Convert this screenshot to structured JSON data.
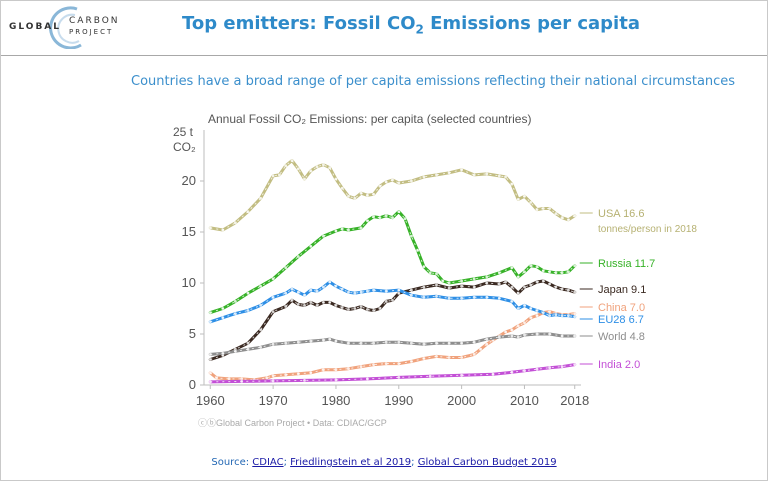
{
  "header": {
    "logo": {
      "left": "GLOBAL",
      "right_top": "CARBON",
      "right_bottom": "PROJECT"
    },
    "title_main": "Top emitters: Fossil CO",
    "title_sub": "2",
    "title_end": " Emissions per capita"
  },
  "subtitle": "Countries have a broad range of per capita emissions reflecting their national circumstances",
  "chart_data": {
    "type": "line",
    "title": "Annual Fossil CO₂ Emissions: per capita (selected countries)",
    "ylabel_top": "25 t",
    "ylabel_unit": "CO₂",
    "xlim": [
      1959,
      2019
    ],
    "ylim": [
      0,
      25
    ],
    "xticks": [
      "1960",
      "1970",
      "1980",
      "1990",
      "2000",
      "2010",
      "2018"
    ],
    "yticks": [
      "0",
      "5",
      "10",
      "15",
      "20"
    ],
    "grid": false,
    "credit": "ⓒⓑGlobal Carbon Project  •  Data: CDIAC/GCP",
    "series": [
      {
        "name": "USA",
        "value_label": "16.6",
        "extra": "tonnes/person in 2018",
        "color": "#c2bd82",
        "points": [
          [
            1960,
            15.4
          ],
          [
            1962,
            15.2
          ],
          [
            1964,
            15.9
          ],
          [
            1966,
            17.0
          ],
          [
            1968,
            18.3
          ],
          [
            1970,
            20.5
          ],
          [
            1971,
            20.6
          ],
          [
            1972,
            21.5
          ],
          [
            1973,
            22.0
          ],
          [
            1974,
            21.2
          ],
          [
            1975,
            20.2
          ],
          [
            1976,
            21.0
          ],
          [
            1977,
            21.4
          ],
          [
            1978,
            21.6
          ],
          [
            1979,
            21.3
          ],
          [
            1980,
            20.2
          ],
          [
            1981,
            19.3
          ],
          [
            1982,
            18.5
          ],
          [
            1983,
            18.3
          ],
          [
            1984,
            18.8
          ],
          [
            1985,
            18.6
          ],
          [
            1986,
            18.7
          ],
          [
            1987,
            19.5
          ],
          [
            1988,
            19.9
          ],
          [
            1989,
            20.1
          ],
          [
            1990,
            19.8
          ],
          [
            1992,
            20.0
          ],
          [
            1994,
            20.4
          ],
          [
            1996,
            20.6
          ],
          [
            1998,
            20.8
          ],
          [
            2000,
            21.1
          ],
          [
            2002,
            20.6
          ],
          [
            2004,
            20.7
          ],
          [
            2006,
            20.5
          ],
          [
            2007,
            20.4
          ],
          [
            2008,
            19.7
          ],
          [
            2009,
            18.2
          ],
          [
            2010,
            18.5
          ],
          [
            2011,
            17.9
          ],
          [
            2012,
            17.2
          ],
          [
            2013,
            17.3
          ],
          [
            2014,
            17.3
          ],
          [
            2015,
            16.8
          ],
          [
            2016,
            16.4
          ],
          [
            2017,
            16.2
          ],
          [
            2018,
            16.6
          ]
        ]
      },
      {
        "name": "Russia",
        "value_label": "11.7",
        "extra": "",
        "color": "#37b228",
        "points": [
          [
            1960,
            7.1
          ],
          [
            1962,
            7.5
          ],
          [
            1964,
            8.2
          ],
          [
            1966,
            9.0
          ],
          [
            1968,
            9.7
          ],
          [
            1970,
            10.4
          ],
          [
            1972,
            11.5
          ],
          [
            1974,
            12.6
          ],
          [
            1976,
            13.6
          ],
          [
            1978,
            14.6
          ],
          [
            1980,
            15.1
          ],
          [
            1981,
            15.3
          ],
          [
            1982,
            15.2
          ],
          [
            1984,
            15.4
          ],
          [
            1985,
            16.1
          ],
          [
            1986,
            16.5
          ],
          [
            1987,
            16.4
          ],
          [
            1988,
            16.6
          ],
          [
            1989,
            16.4
          ],
          [
            1990,
            17.0
          ],
          [
            1991,
            16.3
          ],
          [
            1992,
            14.6
          ],
          [
            1993,
            13.2
          ],
          [
            1994,
            11.6
          ],
          [
            1995,
            11.0
          ],
          [
            1996,
            10.9
          ],
          [
            1997,
            10.2
          ],
          [
            1998,
            10.0
          ],
          [
            2000,
            10.2
          ],
          [
            2002,
            10.4
          ],
          [
            2004,
            10.6
          ],
          [
            2006,
            11.0
          ],
          [
            2008,
            11.5
          ],
          [
            2009,
            10.6
          ],
          [
            2010,
            11.1
          ],
          [
            2011,
            11.7
          ],
          [
            2012,
            11.6
          ],
          [
            2013,
            11.2
          ],
          [
            2014,
            11.1
          ],
          [
            2015,
            11.0
          ],
          [
            2016,
            11.0
          ],
          [
            2017,
            11.1
          ],
          [
            2018,
            11.7
          ]
        ]
      },
      {
        "name": "Japan",
        "value_label": "9.1",
        "extra": "",
        "color": "#3b2a22",
        "points": [
          [
            1960,
            2.5
          ],
          [
            1962,
            2.9
          ],
          [
            1964,
            3.5
          ],
          [
            1966,
            4.1
          ],
          [
            1968,
            5.4
          ],
          [
            1970,
            7.2
          ],
          [
            1972,
            7.7
          ],
          [
            1973,
            8.3
          ],
          [
            1974,
            7.9
          ],
          [
            1975,
            7.8
          ],
          [
            1976,
            8.1
          ],
          [
            1977,
            7.8
          ],
          [
            1978,
            8.1
          ],
          [
            1979,
            8.1
          ],
          [
            1980,
            7.8
          ],
          [
            1981,
            7.6
          ],
          [
            1982,
            7.4
          ],
          [
            1983,
            7.5
          ],
          [
            1984,
            7.7
          ],
          [
            1985,
            7.4
          ],
          [
            1986,
            7.3
          ],
          [
            1987,
            7.5
          ],
          [
            1988,
            8.2
          ],
          [
            1989,
            8.3
          ],
          [
            1990,
            9.0
          ],
          [
            1992,
            9.3
          ],
          [
            1994,
            9.6
          ],
          [
            1996,
            9.8
          ],
          [
            1998,
            9.5
          ],
          [
            2000,
            9.7
          ],
          [
            2002,
            9.6
          ],
          [
            2004,
            10.0
          ],
          [
            2006,
            9.9
          ],
          [
            2007,
            10.1
          ],
          [
            2008,
            9.6
          ],
          [
            2009,
            9.0
          ],
          [
            2010,
            9.6
          ],
          [
            2011,
            9.8
          ],
          [
            2012,
            10.1
          ],
          [
            2013,
            10.2
          ],
          [
            2014,
            9.9
          ],
          [
            2015,
            9.6
          ],
          [
            2016,
            9.4
          ],
          [
            2017,
            9.3
          ],
          [
            2018,
            9.1
          ]
        ]
      },
      {
        "name": "China",
        "value_label": "7.0",
        "extra": "",
        "color": "#f0a27c",
        "points": [
          [
            1960,
            1.2
          ],
          [
            1961,
            0.7
          ],
          [
            1963,
            0.6
          ],
          [
            1965,
            0.6
          ],
          [
            1967,
            0.5
          ],
          [
            1969,
            0.7
          ],
          [
            1970,
            0.9
          ],
          [
            1972,
            1.0
          ],
          [
            1974,
            1.1
          ],
          [
            1976,
            1.2
          ],
          [
            1978,
            1.5
          ],
          [
            1980,
            1.5
          ],
          [
            1982,
            1.6
          ],
          [
            1984,
            1.8
          ],
          [
            1986,
            2.0
          ],
          [
            1988,
            2.1
          ],
          [
            1990,
            2.1
          ],
          [
            1992,
            2.3
          ],
          [
            1994,
            2.6
          ],
          [
            1996,
            2.8
          ],
          [
            1998,
            2.7
          ],
          [
            2000,
            2.7
          ],
          [
            2002,
            3.0
          ],
          [
            2003,
            3.5
          ],
          [
            2004,
            4.0
          ],
          [
            2005,
            4.4
          ],
          [
            2006,
            4.8
          ],
          [
            2007,
            5.2
          ],
          [
            2008,
            5.4
          ],
          [
            2009,
            5.8
          ],
          [
            2010,
            6.1
          ],
          [
            2011,
            6.6
          ],
          [
            2012,
            6.8
          ],
          [
            2013,
            7.1
          ],
          [
            2014,
            7.2
          ],
          [
            2015,
            7.0
          ],
          [
            2016,
            6.9
          ],
          [
            2017,
            6.9
          ],
          [
            2018,
            7.0
          ]
        ]
      },
      {
        "name": "EU28",
        "value_label": "6.7",
        "extra": "",
        "color": "#2e8fe6",
        "points": [
          [
            1960,
            6.2
          ],
          [
            1962,
            6.6
          ],
          [
            1964,
            7.0
          ],
          [
            1966,
            7.3
          ],
          [
            1968,
            7.8
          ],
          [
            1970,
            8.6
          ],
          [
            1972,
            9.0
          ],
          [
            1973,
            9.4
          ],
          [
            1974,
            9.1
          ],
          [
            1975,
            8.8
          ],
          [
            1976,
            9.3
          ],
          [
            1977,
            9.2
          ],
          [
            1978,
            9.6
          ],
          [
            1979,
            10.1
          ],
          [
            1980,
            9.7
          ],
          [
            1981,
            9.4
          ],
          [
            1982,
            9.1
          ],
          [
            1983,
            9.0
          ],
          [
            1984,
            9.1
          ],
          [
            1985,
            9.2
          ],
          [
            1986,
            9.3
          ],
          [
            1988,
            9.2
          ],
          [
            1990,
            9.3
          ],
          [
            1992,
            8.8
          ],
          [
            1994,
            8.6
          ],
          [
            1996,
            8.7
          ],
          [
            1998,
            8.5
          ],
          [
            2000,
            8.5
          ],
          [
            2002,
            8.6
          ],
          [
            2004,
            8.6
          ],
          [
            2006,
            8.5
          ],
          [
            2008,
            8.2
          ],
          [
            2009,
            7.5
          ],
          [
            2010,
            7.8
          ],
          [
            2011,
            7.5
          ],
          [
            2012,
            7.3
          ],
          [
            2013,
            7.1
          ],
          [
            2014,
            6.8
          ],
          [
            2015,
            6.9
          ],
          [
            2016,
            6.8
          ],
          [
            2017,
            6.8
          ],
          [
            2018,
            6.7
          ]
        ]
      },
      {
        "name": "World",
        "value_label": "4.8",
        "extra": "",
        "color": "#8e8e8e",
        "points": [
          [
            1960,
            3.0
          ],
          [
            1962,
            3.1
          ],
          [
            1964,
            3.3
          ],
          [
            1966,
            3.5
          ],
          [
            1968,
            3.7
          ],
          [
            1970,
            4.0
          ],
          [
            1972,
            4.1
          ],
          [
            1974,
            4.2
          ],
          [
            1976,
            4.3
          ],
          [
            1978,
            4.4
          ],
          [
            1979,
            4.5
          ],
          [
            1980,
            4.3
          ],
          [
            1982,
            4.1
          ],
          [
            1984,
            4.1
          ],
          [
            1986,
            4.1
          ],
          [
            1988,
            4.2
          ],
          [
            1990,
            4.2
          ],
          [
            1992,
            4.1
          ],
          [
            1994,
            4.0
          ],
          [
            1996,
            4.1
          ],
          [
            1998,
            4.1
          ],
          [
            2000,
            4.1
          ],
          [
            2002,
            4.2
          ],
          [
            2004,
            4.5
          ],
          [
            2006,
            4.7
          ],
          [
            2008,
            4.8
          ],
          [
            2009,
            4.7
          ],
          [
            2010,
            4.9
          ],
          [
            2012,
            5.0
          ],
          [
            2014,
            5.0
          ],
          [
            2016,
            4.8
          ],
          [
            2018,
            4.8
          ]
        ]
      },
      {
        "name": "India",
        "value_label": "2.0",
        "extra": "",
        "color": "#c34fd6",
        "points": [
          [
            1960,
            0.3
          ],
          [
            1965,
            0.35
          ],
          [
            1970,
            0.4
          ],
          [
            1975,
            0.45
          ],
          [
            1980,
            0.5
          ],
          [
            1985,
            0.6
          ],
          [
            1990,
            0.75
          ],
          [
            1995,
            0.85
          ],
          [
            2000,
            0.95
          ],
          [
            2005,
            1.05
          ],
          [
            2008,
            1.25
          ],
          [
            2010,
            1.4
          ],
          [
            2012,
            1.55
          ],
          [
            2014,
            1.7
          ],
          [
            2016,
            1.8
          ],
          [
            2018,
            2.0
          ]
        ]
      }
    ]
  },
  "source": {
    "prefix": "Source: ",
    "links": [
      "CDIAC",
      "Friedlingstein et al 2019",
      "Global Carbon Budget 2019"
    ],
    "sep": "; "
  }
}
